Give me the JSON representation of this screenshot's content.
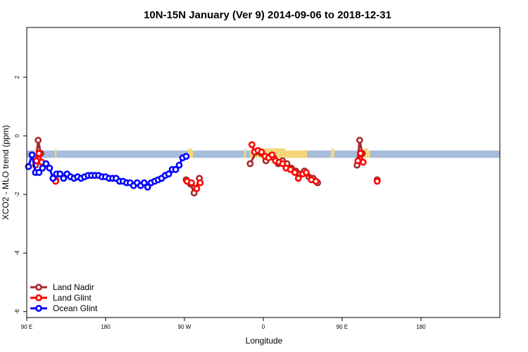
{
  "chart_data": {
    "type": "line",
    "title": "10N-15N January (Ver 9)   2014-09-06 to 2018-12-31",
    "xlabel": "Longitude",
    "ylabel": "XCO2 - MLO trend (ppm)",
    "x_axis": {
      "description": "longitude, 90E through 180 / 90W / 0 / 90E to 180 (540 degrees of wrap)",
      "xlim": [
        90,
        630
      ],
      "ticks": [
        {
          "value": 90,
          "label": "90 E"
        },
        {
          "value": 180,
          "label": "180"
        },
        {
          "value": 270,
          "label": "90 W"
        },
        {
          "value": 360,
          "label": "0"
        },
        {
          "value": 450,
          "label": "90 E"
        },
        {
          "value": 540,
          "label": "180"
        }
      ]
    },
    "y_axis": {
      "ylim": [
        -6.2,
        3.7
      ],
      "ticks": [
        {
          "value": 2,
          "label": "2"
        },
        {
          "value": 0,
          "label": "0"
        },
        {
          "value": -2,
          "label": "-2"
        },
        {
          "value": -4,
          "label": "-4"
        },
        {
          "value": -6,
          "label": "-6"
        }
      ]
    },
    "background_map": {
      "lat_band": [
        -0.75,
        -0.5
      ],
      "ocean_color": "#a6bddb",
      "land_color": "#f7d678",
      "land_segments": [
        {
          "x": [
            99,
            101
          ]
        },
        {
          "x": [
            122,
            124
          ]
        },
        {
          "x": [
            274,
            280
          ]
        },
        {
          "x": [
            338,
            340
          ]
        },
        {
          "x": [
            345,
            410
          ]
        },
        {
          "x": [
            437,
            441
          ]
        },
        {
          "x": [
            474,
            482
          ]
        }
      ]
    },
    "legend": {
      "position": "bottom-left",
      "entries": [
        "Land Nadir",
        "Land Glint",
        "Ocean Glint"
      ]
    },
    "series": [
      {
        "name": "Land Nadir",
        "color": "#a52a2a",
        "segments": [
          [
            [
              100,
              -1.0
            ],
            [
              103,
              -0.15
            ],
            [
              106,
              -0.6
            ]
          ],
          [
            [
              123,
              -1.5
            ]
          ],
          [
            [
              272,
              -1.5
            ],
            [
              277,
              -1.65
            ],
            [
              281,
              -1.95
            ],
            [
              287,
              -1.45
            ]
          ],
          [
            [
              345,
              -0.95
            ],
            [
              352,
              -0.55
            ],
            [
              358,
              -0.6
            ],
            [
              363,
              -0.85
            ],
            [
              368,
              -0.7
            ],
            [
              372,
              -0.75
            ],
            [
              377,
              -0.95
            ],
            [
              382,
              -0.85
            ],
            [
              387,
              -0.95
            ],
            [
              392,
              -1.1
            ],
            [
              397,
              -1.2
            ],
            [
              402,
              -1.3
            ],
            [
              407,
              -1.2
            ],
            [
              412,
              -1.4
            ],
            [
              417,
              -1.45
            ],
            [
              422,
              -1.6
            ]
          ],
          [
            [
              467,
              -1.0
            ],
            [
              470,
              -0.15
            ],
            [
              473,
              -0.6
            ]
          ],
          [
            [
              490,
              -1.5
            ]
          ]
        ]
      },
      {
        "name": "Land Glint",
        "color": "#ff0000",
        "segments": [
          [
            [
              101,
              -0.85
            ],
            [
              104,
              -0.6
            ],
            [
              107,
              -0.9
            ]
          ],
          [
            [
              123,
              -1.55
            ]
          ],
          [
            [
              273,
              -1.55
            ],
            [
              278,
              -1.6
            ],
            [
              284,
              -1.8
            ],
            [
              288,
              -1.6
            ]
          ],
          [
            [
              347,
              -0.3
            ],
            [
              350,
              -0.55
            ],
            [
              354,
              -0.5
            ],
            [
              358,
              -0.55
            ],
            [
              362,
              -0.7
            ],
            [
              366,
              -0.75
            ],
            [
              370,
              -0.65
            ],
            [
              374,
              -0.85
            ],
            [
              378,
              -0.9
            ],
            [
              382,
              -0.95
            ],
            [
              386,
              -1.1
            ],
            [
              391,
              -1.15
            ],
            [
              396,
              -1.25
            ],
            [
              400,
              -1.45
            ],
            [
              405,
              -1.3
            ],
            [
              409,
              -1.25
            ],
            [
              415,
              -1.5
            ],
            [
              420,
              -1.55
            ]
          ],
          [
            [
              468,
              -0.85
            ],
            [
              471,
              -0.6
            ],
            [
              474,
              -0.9
            ]
          ],
          [
            [
              490,
              -1.55
            ]
          ]
        ]
      },
      {
        "name": "Ocean Glint",
        "color": "#0000ff",
        "segments": [
          [
            [
              92,
              -1.05
            ],
            [
              96,
              -0.65
            ],
            [
              100,
              -1.25
            ],
            [
              104,
              -1.25
            ],
            [
              108,
              -1.1
            ],
            [
              112,
              -0.95
            ],
            [
              116,
              -1.1
            ],
            [
              120,
              -1.45
            ],
            [
              124,
              -1.3
            ],
            [
              128,
              -1.3
            ],
            [
              132,
              -1.45
            ],
            [
              136,
              -1.3
            ],
            [
              140,
              -1.4
            ],
            [
              144,
              -1.45
            ],
            [
              148,
              -1.4
            ],
            [
              152,
              -1.45
            ],
            [
              156,
              -1.4
            ],
            [
              160,
              -1.35
            ],
            [
              164,
              -1.35
            ],
            [
              168,
              -1.35
            ],
            [
              172,
              -1.35
            ],
            [
              176,
              -1.4
            ],
            [
              180,
              -1.4
            ],
            [
              184,
              -1.45
            ],
            [
              188,
              -1.45
            ],
            [
              192,
              -1.45
            ],
            [
              196,
              -1.55
            ],
            [
              200,
              -1.55
            ],
            [
              204,
              -1.6
            ],
            [
              208,
              -1.6
            ],
            [
              212,
              -1.7
            ],
            [
              216,
              -1.6
            ],
            [
              220,
              -1.7
            ],
            [
              224,
              -1.6
            ],
            [
              228,
              -1.75
            ],
            [
              232,
              -1.6
            ],
            [
              236,
              -1.55
            ],
            [
              240,
              -1.5
            ],
            [
              244,
              -1.45
            ],
            [
              248,
              -1.35
            ],
            [
              252,
              -1.3
            ],
            [
              256,
              -1.15
            ],
            [
              260,
              -1.15
            ],
            [
              264,
              -1.0
            ],
            [
              268,
              -0.75
            ],
            [
              272,
              -0.7
            ]
          ]
        ]
      }
    ]
  }
}
